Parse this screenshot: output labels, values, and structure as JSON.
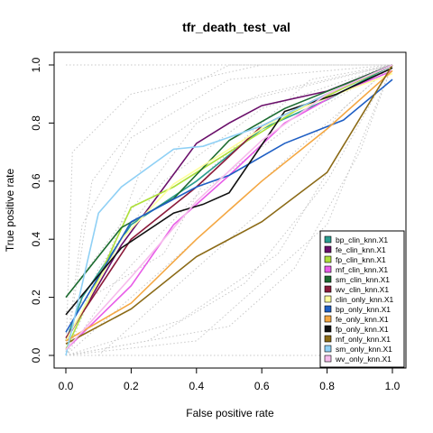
{
  "chart_data": {
    "type": "line",
    "title": "tfr_death_test_val",
    "xlabel": "False positive rate",
    "ylabel": "True positive rate",
    "xlim": [
      0,
      1
    ],
    "ylim": [
      0,
      1
    ],
    "x_ticks": [
      "0.0",
      "0.2",
      "0.4",
      "0.6",
      "0.8",
      "1.0"
    ],
    "y_ticks": [
      "0.0",
      "0.2",
      "0.4",
      "0.6",
      "0.8",
      "1.0"
    ],
    "grid": false,
    "legend_position": "bottom-right",
    "reference_lines": {
      "color": "#c8c8c8",
      "style": "dotted",
      "description_note": "light gray dotted ROC curves of other models in background",
      "lines": [
        [
          [
            0,
            0
          ],
          [
            0.35,
            0.12
          ],
          [
            0.65,
            0.35
          ],
          [
            1,
            1
          ]
        ],
        [
          [
            0,
            0
          ],
          [
            0.1,
            0.3
          ],
          [
            0.3,
            0.6
          ],
          [
            0.6,
            0.85
          ],
          [
            1,
            1
          ]
        ],
        [
          [
            0,
            0
          ],
          [
            0.05,
            0.45
          ],
          [
            0.2,
            0.75
          ],
          [
            0.5,
            0.95
          ],
          [
            1,
            1
          ]
        ],
        [
          [
            0,
            0
          ],
          [
            0.25,
            0.05
          ],
          [
            0.55,
            0.25
          ],
          [
            0.8,
            0.6
          ],
          [
            1,
            1
          ]
        ],
        [
          [
            0,
            0
          ],
          [
            0.15,
            0.25
          ],
          [
            0.4,
            0.55
          ],
          [
            0.7,
            0.8
          ],
          [
            1,
            1
          ]
        ],
        [
          [
            0,
            0.2
          ],
          [
            0.2,
            0.5
          ],
          [
            0.4,
            0.8
          ],
          [
            0.6,
            0.9
          ],
          [
            1,
            1
          ]
        ],
        [
          [
            0,
            0
          ],
          [
            0.5,
            0.1
          ],
          [
            0.7,
            0.3
          ],
          [
            0.9,
            0.7
          ],
          [
            1,
            1
          ]
        ],
        [
          [
            0,
            0
          ],
          [
            0.08,
            0.6
          ],
          [
            0.25,
            0.85
          ],
          [
            0.5,
            1
          ],
          [
            1,
            1
          ]
        ],
        [
          [
            0,
            0
          ],
          [
            0.3,
            0.3
          ],
          [
            0.5,
            0.5
          ],
          [
            0.8,
            0.8
          ],
          [
            1,
            1
          ]
        ],
        [
          [
            0.1,
            0
          ],
          [
            0.3,
            0.2
          ],
          [
            0.6,
            0.5
          ],
          [
            0.85,
            0.85
          ],
          [
            1,
            1
          ]
        ],
        [
          [
            0,
            0
          ],
          [
            0.02,
            0.7
          ],
          [
            0.2,
            0.9
          ],
          [
            0.6,
            1
          ],
          [
            1,
            1
          ]
        ],
        [
          [
            0,
            0
          ],
          [
            0.4,
            0.05
          ],
          [
            0.8,
            0.45
          ],
          [
            1,
            1
          ]
        ],
        [
          [
            0,
            0
          ],
          [
            0.15,
            0.4
          ],
          [
            0.25,
            0.7
          ],
          [
            0.45,
            0.85
          ],
          [
            1,
            1
          ]
        ],
        [
          [
            0,
            0.15
          ],
          [
            0.3,
            0.35
          ],
          [
            0.45,
            0.65
          ],
          [
            0.75,
            0.95
          ],
          [
            1,
            1
          ]
        ],
        [
          [
            0,
            1
          ],
          [
            1,
            1
          ]
        ],
        [
          [
            0,
            0
          ],
          [
            1,
            0
          ]
        ]
      ]
    },
    "series": [
      {
        "name": "bp_clin_knn.X1",
        "color": "#2a9d8f",
        "x": [
          0,
          0.05,
          0.2,
          0.4,
          0.6,
          0.8,
          1
        ],
        "y": [
          0.05,
          0.2,
          0.45,
          0.6,
          0.78,
          0.88,
          1
        ]
      },
      {
        "name": "fe_clin_knn.X1",
        "color": "#6a0f6a",
        "x": [
          0,
          0.17,
          0.4,
          0.5,
          0.6,
          0.8,
          1
        ],
        "y": [
          0.05,
          0.38,
          0.73,
          0.8,
          0.86,
          0.91,
          1
        ]
      },
      {
        "name": "fp_clin_knn.X1",
        "color": "#aee03a",
        "x": [
          0,
          0.2,
          0.33,
          0.5,
          0.7,
          1
        ],
        "y": [
          0.02,
          0.51,
          0.58,
          0.7,
          0.84,
          1
        ]
      },
      {
        "name": "mf_clin_knn.X1",
        "color": "#e85ce8",
        "x": [
          0,
          0.2,
          0.33,
          0.5,
          0.67,
          0.83,
          1
        ],
        "y": [
          0.02,
          0.24,
          0.45,
          0.62,
          0.8,
          0.9,
          0.98
        ]
      },
      {
        "name": "sm_clin_knn.X1",
        "color": "#1b6b2f",
        "x": [
          0,
          0.17,
          0.33,
          0.5,
          0.67,
          1
        ],
        "y": [
          0.2,
          0.44,
          0.54,
          0.74,
          0.85,
          1
        ]
      },
      {
        "name": "wv_clin_knn.X1",
        "color": "#8b1a3a",
        "x": [
          0,
          0.2,
          0.4,
          0.6,
          0.8,
          1
        ],
        "y": [
          0.06,
          0.4,
          0.58,
          0.79,
          0.9,
          1
        ]
      },
      {
        "name": "clin_only_knn.X1",
        "color": "#ffff9e",
        "x": [
          0,
          0.17,
          0.33,
          0.5,
          0.67,
          0.83,
          1
        ],
        "y": [
          0.05,
          0.4,
          0.59,
          0.71,
          0.83,
          0.9,
          0.97
        ]
      },
      {
        "name": "bp_only_knn.X1",
        "color": "#1f5fc4",
        "x": [
          0,
          0.2,
          0.4,
          0.5,
          0.67,
          0.85,
          1
        ],
        "y": [
          0.08,
          0.46,
          0.58,
          0.62,
          0.73,
          0.81,
          0.95
        ]
      },
      {
        "name": "fe_only_knn.X1",
        "color": "#f4a742",
        "x": [
          0,
          0.2,
          0.4,
          0.6,
          0.8,
          1
        ],
        "y": [
          0.05,
          0.18,
          0.4,
          0.6,
          0.78,
          0.98
        ]
      },
      {
        "name": "fp_only_knn.X1",
        "color": "#111111",
        "x": [
          0,
          0.17,
          0.33,
          0.42,
          0.5,
          0.67,
          0.83,
          1
        ],
        "y": [
          0.14,
          0.37,
          0.49,
          0.52,
          0.56,
          0.84,
          0.9,
          0.99
        ]
      },
      {
        "name": "mf_only_knn.X1",
        "color": "#8b6a16",
        "x": [
          0,
          0.2,
          0.4,
          0.6,
          0.8,
          1
        ],
        "y": [
          0.04,
          0.16,
          0.34,
          0.46,
          0.63,
          1
        ]
      },
      {
        "name": "sm_only_knn.X1",
        "color": "#8fd0f5",
        "x": [
          0,
          0.1,
          0.17,
          0.33,
          0.42,
          0.6,
          0.8,
          1
        ],
        "y": [
          0.0,
          0.49,
          0.58,
          0.71,
          0.72,
          0.79,
          0.9,
          1
        ]
      },
      {
        "name": "wv_only_knn.X1",
        "color": "#f6bcec",
        "x": [
          0,
          0.2,
          0.4,
          0.6,
          0.8,
          1
        ],
        "y": [
          0.02,
          0.27,
          0.53,
          0.74,
          0.9,
          1
        ]
      }
    ]
  }
}
